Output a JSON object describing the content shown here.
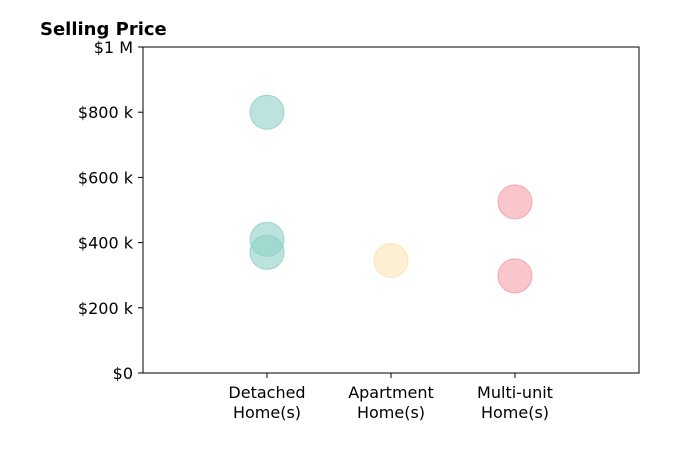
{
  "chart_data": {
    "type": "scatter",
    "title": "Selling Price",
    "xlabel": "",
    "ylabel": "",
    "categories": [
      [
        "Detached",
        "Home(s)"
      ],
      [
        "Apartment",
        "Home(s)"
      ],
      [
        "Multi-unit",
        "Home(s)"
      ]
    ],
    "xlim": [
      -1,
      3
    ],
    "ylim": [
      0,
      1000000
    ],
    "y_ticks": [
      {
        "value": 0,
        "label": "$0"
      },
      {
        "value": 200000,
        "label": "$200 k"
      },
      {
        "value": 400000,
        "label": "$400 k"
      },
      {
        "value": 600000,
        "label": "$600 k"
      },
      {
        "value": 800000,
        "label": "$800 k"
      },
      {
        "value": 1000000,
        "label": "$1 M"
      }
    ],
    "series": [
      {
        "category_index": 0,
        "values": [
          800000,
          410000,
          370000
        ],
        "color": "#8fd0c6"
      },
      {
        "category_index": 1,
        "values": [
          345000
        ],
        "color": "#fbe4b3"
      },
      {
        "category_index": 2,
        "values": [
          525000,
          298000
        ],
        "color": "#f4a0a8"
      }
    ],
    "grid": false,
    "legend": "none"
  }
}
